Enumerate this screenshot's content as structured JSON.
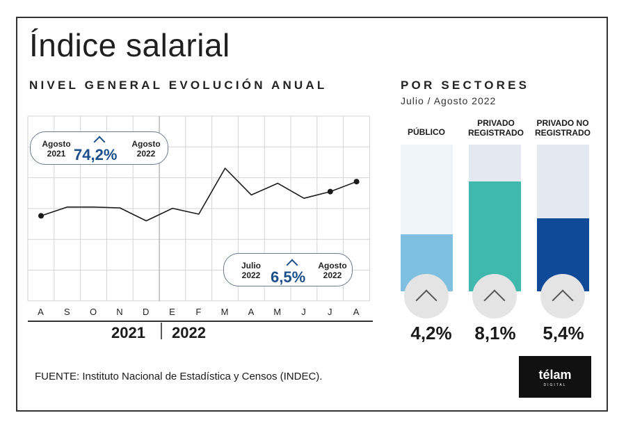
{
  "title": "Índice salarial",
  "subtitle": "NIVEL GENERAL EVOLUCIÓN ANUAL",
  "chart_data": [
    {
      "type": "line",
      "title": "NIVEL GENERAL EVOLUCIÓN ANUAL",
      "categories": [
        "A",
        "S",
        "O",
        "N",
        "D",
        "E",
        "F",
        "M",
        "A",
        "M",
        "J",
        "J",
        "A"
      ],
      "years": [
        "2021",
        "2022"
      ],
      "ylim": [
        0,
        100
      ],
      "grid": true,
      "series": [
        {
          "values": [
            38,
            48.5,
            48.5,
            47.5,
            32,
            47,
            40,
            95,
            63,
            77,
            59,
            67,
            79
          ]
        }
      ],
      "marked_points": [
        0,
        11,
        12
      ],
      "annotations": [
        {
          "from": "Agosto\n2021",
          "to": "Agosto\n2022",
          "value": "74,2%"
        },
        {
          "from": "Julio\n2022",
          "to": "Agosto\n2022",
          "value": "6,5%"
        }
      ]
    },
    {
      "type": "bar",
      "title": "POR SECTORES",
      "subtitle": "Julio / Agosto 2022",
      "categories": [
        "PÚBLICO",
        "PRIVADO REGISTRADO",
        "PRIVADO NO REGISTRADO"
      ],
      "values": [
        4.2,
        8.1,
        5.4
      ],
      "value_labels": [
        "4,2%",
        "8,1%",
        "5,4%"
      ],
      "ylim": [
        0,
        10.8
      ],
      "colors": [
        "#7fbfe0",
        "#3fb9ad",
        "#0e4a97"
      ],
      "track_colors": [
        "#edf4fa",
        "#e4e8f1",
        "#e4e8f1"
      ]
    }
  ],
  "source": "FUENTE: Instituto Nacional de Estadística y Censos (INDEC).",
  "logo": {
    "name": "télam",
    "sub": "DIGITAL"
  },
  "icons": {
    "bar_arrow": "chevron-up-icon",
    "bubble_arrow": "caret-up-icon"
  }
}
